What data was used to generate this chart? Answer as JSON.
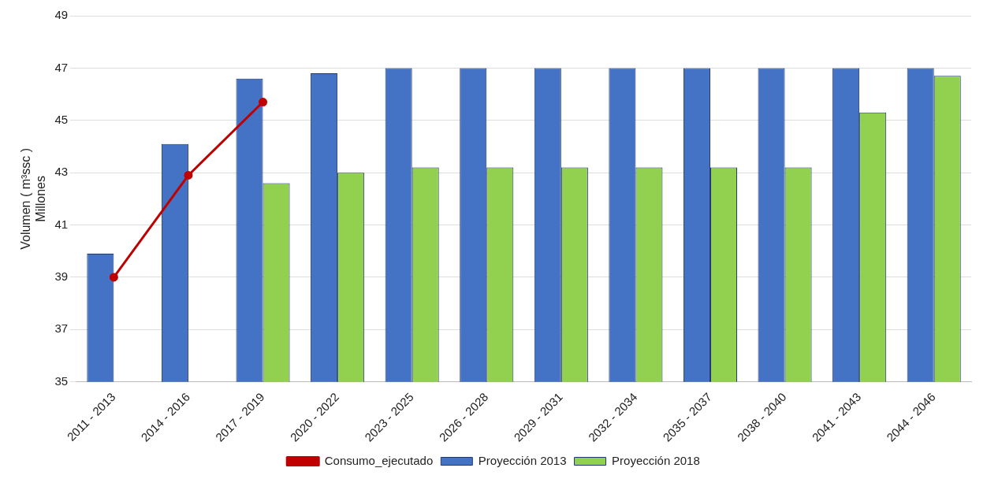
{
  "chart_data": {
    "type": "bar",
    "ylabel": "Volumen ( m³ssc )\nMillones",
    "categories": [
      "2011 - 2013",
      "2014 - 2016",
      "2017 - 2019",
      "2020 - 2022",
      "2023 - 2025",
      "2026 - 2028",
      "2029 - 2031",
      "2032 - 2034",
      "2035 - 2037",
      "2038 - 2040",
      "2041 - 2043",
      "2044 - 2046"
    ],
    "series": [
      {
        "name": "Proyección 2013",
        "color": "#4472c4",
        "values": [
          39.9,
          44.1,
          46.6,
          46.8,
          47,
          47,
          47,
          47,
          47,
          47,
          47,
          47
        ]
      },
      {
        "name": "Proyección 2018",
        "color": "#92d050",
        "values": [
          null,
          null,
          42.6,
          43.0,
          43.2,
          43.2,
          43.2,
          43.2,
          43.2,
          43.2,
          45.3,
          46.7
        ]
      },
      {
        "name": "Consumo_ejecutado",
        "type": "line",
        "color": "#c00000",
        "marker": "circle",
        "values": [
          39.0,
          42.9,
          45.7,
          null,
          null,
          null,
          null,
          null,
          null,
          null,
          null,
          null
        ]
      }
    ],
    "ylim": [
      35,
      49
    ],
    "yticks": [
      35,
      37,
      39,
      41,
      43,
      45,
      47,
      49
    ],
    "grid": "y",
    "legend": "bottom"
  }
}
